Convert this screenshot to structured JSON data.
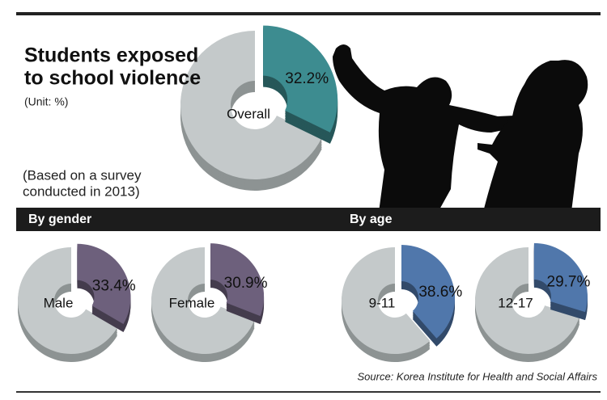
{
  "header": {
    "title_line1": "Students exposed",
    "title_line2": "to school violence",
    "unit": "(Unit: %)",
    "note_line1": "(Based on a survey",
    "note_line2": "conducted in 2013)"
  },
  "sections": {
    "gender": "By gender",
    "age": "By age"
  },
  "source": "Source: Korea Institute for Health and Social Affairs",
  "chart_data": [
    {
      "type": "pie",
      "categories": [
        "Overall"
      ],
      "values": [
        32.2
      ],
      "value_labels": [
        "32.2%"
      ],
      "color": "#3d8c90"
    },
    {
      "type": "pie",
      "categories": [
        "Male"
      ],
      "values": [
        33.4
      ],
      "value_labels": [
        "33.4%"
      ],
      "color": "#6d607c"
    },
    {
      "type": "pie",
      "categories": [
        "Female"
      ],
      "values": [
        30.9
      ],
      "value_labels": [
        "30.9%"
      ],
      "color": "#6d607c"
    },
    {
      "type": "pie",
      "categories": [
        "9-11"
      ],
      "values": [
        38.6
      ],
      "value_labels": [
        "38.6%"
      ],
      "color": "#5077ab"
    },
    {
      "type": "pie",
      "categories": [
        "12-17"
      ],
      "values": [
        29.7
      ],
      "value_labels": [
        "29.7%"
      ],
      "color": "#5077ab"
    }
  ]
}
